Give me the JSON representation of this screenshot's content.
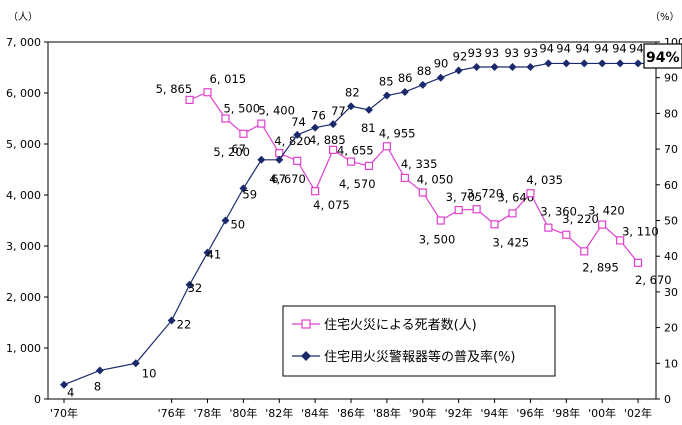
{
  "chart_data": {
    "type": "line",
    "x": [
      "'70年",
      "'72年",
      "'74年",
      "'76年",
      "'77年",
      "'78年",
      "'79年",
      "'80年",
      "'81年",
      "'82年",
      "'83年",
      "'84年",
      "'85年",
      "'86年",
      "'87年",
      "'88年",
      "'89年",
      "'90年",
      "'91年",
      "'92年",
      "'93年",
      "'94年",
      "'95年",
      "'96年",
      "'97年",
      "'98年",
      "'99年",
      "'00年",
      "'01年",
      "'02年",
      "'03年"
    ],
    "xtick_labels": [
      "'70年",
      "'76年",
      "'78年",
      "'80年",
      "'82年",
      "'84年",
      "'86年",
      "'88年",
      "'90年",
      "'92年",
      "'94年",
      "'96年",
      "'98年",
      "'00年",
      "'02年"
    ],
    "ylabel_left": "（人）",
    "ylabel_right": "（%）",
    "ylim_left": [
      0,
      7000
    ],
    "ylim_right": [
      0,
      100
    ],
    "yticks_left": [
      "0",
      "1, 000",
      "2, 000",
      "3, 000",
      "4, 000",
      "5, 000",
      "6, 000",
      "7, 000"
    ],
    "yticks_right": [
      "0",
      "10",
      "20",
      "30",
      "40",
      "50",
      "60",
      "70",
      "80",
      "90",
      "100"
    ],
    "series": [
      {
        "name": "住宅火災による死者数(人)",
        "axis": "left",
        "color": "#e040d0",
        "marker": "square-open",
        "x": [
          "'77年",
          "'78年",
          "'79年",
          "'80年",
          "'81年",
          "'82年",
          "'83年",
          "'84年",
          "'85年",
          "'86年",
          "'87年",
          "'88年",
          "'89年",
          "'90年",
          "'91年",
          "'92年",
          "'93年",
          "'94年",
          "'95年",
          "'96年",
          "'97年",
          "'98年",
          "'99年",
          "'00年",
          "'01年",
          "'02年"
        ],
        "values": [
          5865,
          6015,
          5500,
          5200,
          5400,
          4820,
          4670,
          4075,
          4885,
          4655,
          4570,
          4955,
          4335,
          4050,
          3500,
          3705,
          3720,
          3425,
          3640,
          4035,
          3360,
          3220,
          2895,
          3420,
          3110,
          2670
        ],
        "labels": [
          "5, 865",
          "6, 015",
          "5, 500",
          "5, 200",
          "5, 400",
          "4, 820",
          "4, 670",
          "4, 075",
          "4, 885",
          "4, 655",
          "4, 570",
          "4, 955",
          "4, 335",
          "4, 050",
          "3, 500",
          "3, 705",
          "3, 720",
          "3, 425",
          "3, 640",
          "4, 035",
          "3, 360",
          "3, 220",
          "2, 895",
          "3, 420",
          "3, 110",
          "2, 670"
        ]
      },
      {
        "name": "住宅用火災警報器等の普及率(%)",
        "axis": "right",
        "color": "#1a2a6c",
        "marker": "diamond-filled",
        "x": [
          "'70年",
          "'72年",
          "'74年",
          "'76年",
          "'77年",
          "'78年",
          "'79年",
          "'80年",
          "'81年",
          "'82年",
          "'83年",
          "'84年",
          "'85年",
          "'86年",
          "'87年",
          "'88年",
          "'89年",
          "'90年",
          "'91年",
          "'92年",
          "'93年",
          "'94年",
          "'95年",
          "'96年",
          "'97年",
          "'98年",
          "'99年",
          "'00年",
          "'01年",
          "'02年",
          "'03年"
        ],
        "values": [
          4,
          8,
          10,
          22,
          32,
          41,
          50,
          59,
          67,
          67,
          74,
          76,
          77,
          82,
          81,
          85,
          86,
          88,
          90,
          92,
          93,
          93,
          93,
          93,
          94,
          94,
          94,
          94,
          94,
          94,
          94
        ],
        "labels": [
          "4",
          "8",
          "10",
          "22",
          "32",
          "41",
          "50",
          "59",
          "67",
          "67",
          "74",
          "76",
          "77",
          "82",
          "81",
          "85",
          "86",
          "88",
          "90",
          "92",
          "93",
          "93",
          "93",
          "93",
          "94",
          "94",
          "94",
          "94",
          "94",
          "94",
          ""
        ]
      }
    ],
    "callout": "94%",
    "legend_position": "bottom-right",
    "grid": false
  }
}
